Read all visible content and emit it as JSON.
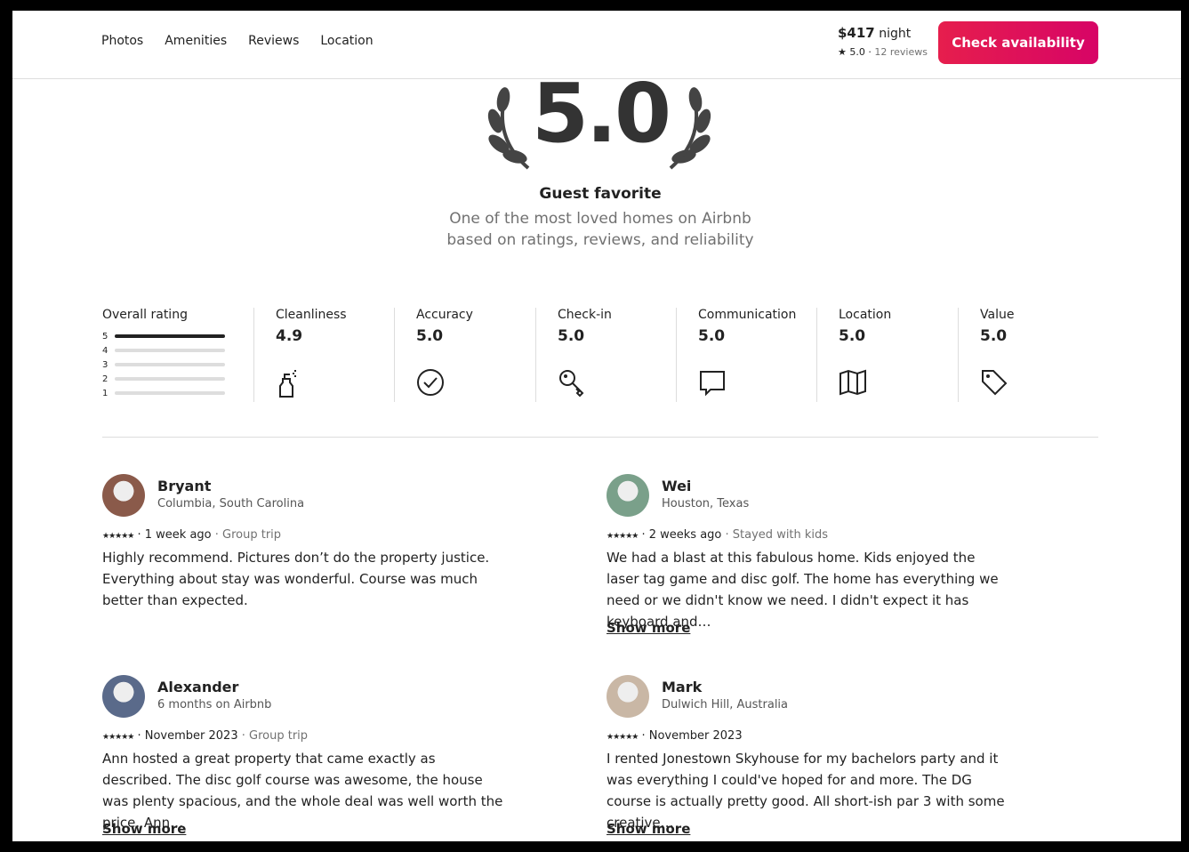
{
  "nav": {
    "items": [
      "Photos",
      "Amenities",
      "Reviews",
      "Location"
    ]
  },
  "booking": {
    "price": "$417",
    "per": "night",
    "rating": "5.0",
    "reviews": "12 reviews",
    "button": "Check availability"
  },
  "hero": {
    "score": "5.0",
    "title": "Guest favorite",
    "subtitle_lines": [
      "One of the most loved homes on Airbnb",
      "based on ratings, reviews, and reliability"
    ]
  },
  "overall": {
    "label": "Overall rating",
    "levels": [
      "5",
      "4",
      "3",
      "2",
      "1"
    ]
  },
  "categories": [
    {
      "name": "Cleanliness",
      "score": "4.9"
    },
    {
      "name": "Accuracy",
      "score": "5.0"
    },
    {
      "name": "Check-in",
      "score": "5.0"
    },
    {
      "name": "Communication",
      "score": "5.0"
    },
    {
      "name": "Location",
      "score": "5.0"
    },
    {
      "name": "Value",
      "score": "5.0"
    }
  ],
  "reviews": [
    {
      "name": "Bryant",
      "subtitle": "Columbia, South Carolina",
      "date": "1 week ago",
      "trip": "Group trip",
      "text": "Highly recommend. Pictures don’t do the property justice. Everything about stay was wonderful. Course was much better than expected."
    },
    {
      "name": "Wei",
      "subtitle": "Houston, Texas",
      "date": "2 weeks ago",
      "trip": "Stayed with kids",
      "text": "We had a blast at this fabulous home. Kids enjoyed the laser tag game and disc golf. The home has everything we need or we didn't know we need. I didn't expect it has keyboard and…",
      "show_more": "Show more"
    },
    {
      "name": "Alexander",
      "subtitle": "6 months on Airbnb",
      "date": "November 2023",
      "trip": "Group trip",
      "text": "Ann hosted a great property that came exactly as described. The disc golf course was awesome, the house was plenty spacious, and the whole deal was well worth the price. Ann…",
      "show_more": "Show more"
    },
    {
      "name": "Mark",
      "subtitle": "Dulwich Hill, Australia",
      "date": "November 2023",
      "text": "I rented Jonestown Skyhouse for my bachelors party and it was everything I could've hoped for and more. The DG course is actually pretty good. All short-ish par 3 with some creative…",
      "show_more": "Show more"
    }
  ]
}
